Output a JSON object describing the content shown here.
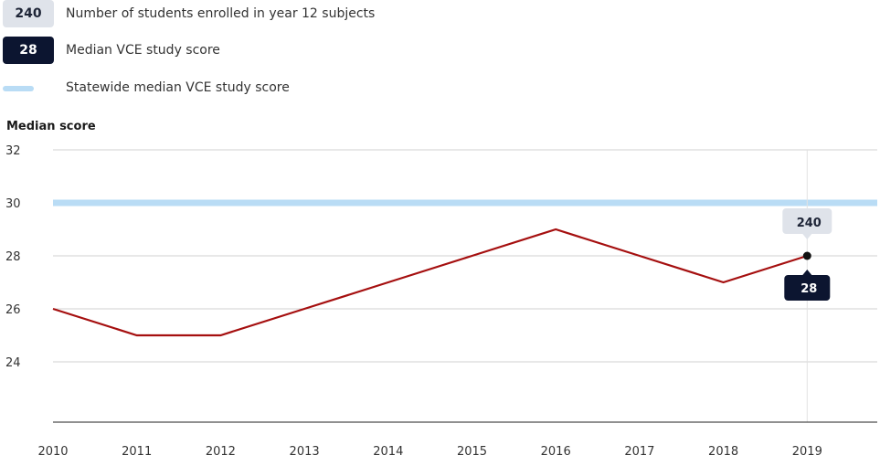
{
  "legend": {
    "enrolled_value": "240",
    "enrolled_label": "Number of students enrolled in year 12 subjects",
    "median_value": "28",
    "median_label": "Median VCE study score",
    "statewide_label": "Statewide median VCE study score"
  },
  "chart_data": {
    "type": "line",
    "ylabel": "Median score",
    "x": [
      "2010",
      "2011",
      "2012",
      "2013",
      "2014",
      "2015",
      "2016",
      "2017",
      "2018",
      "2019"
    ],
    "series": [
      {
        "name": "Median VCE study score",
        "values": [
          26,
          25,
          25,
          26,
          27,
          28,
          29,
          28,
          27,
          28
        ],
        "color": "#a50f0f"
      }
    ],
    "reference_line": {
      "name": "Statewide median VCE study score",
      "value": 30,
      "color": "#b9dcf5"
    },
    "yticks": [
      24,
      26,
      28,
      30,
      32
    ],
    "ylim": [
      22,
      32
    ],
    "grid": true,
    "tooltip": {
      "x": "2019",
      "enrolled": "240",
      "median": "28"
    },
    "colors": {
      "badge_light": "#dfe3ea",
      "badge_dark": "#0c1530",
      "grid": "#d0d0d0",
      "axis": "#222222"
    }
  }
}
